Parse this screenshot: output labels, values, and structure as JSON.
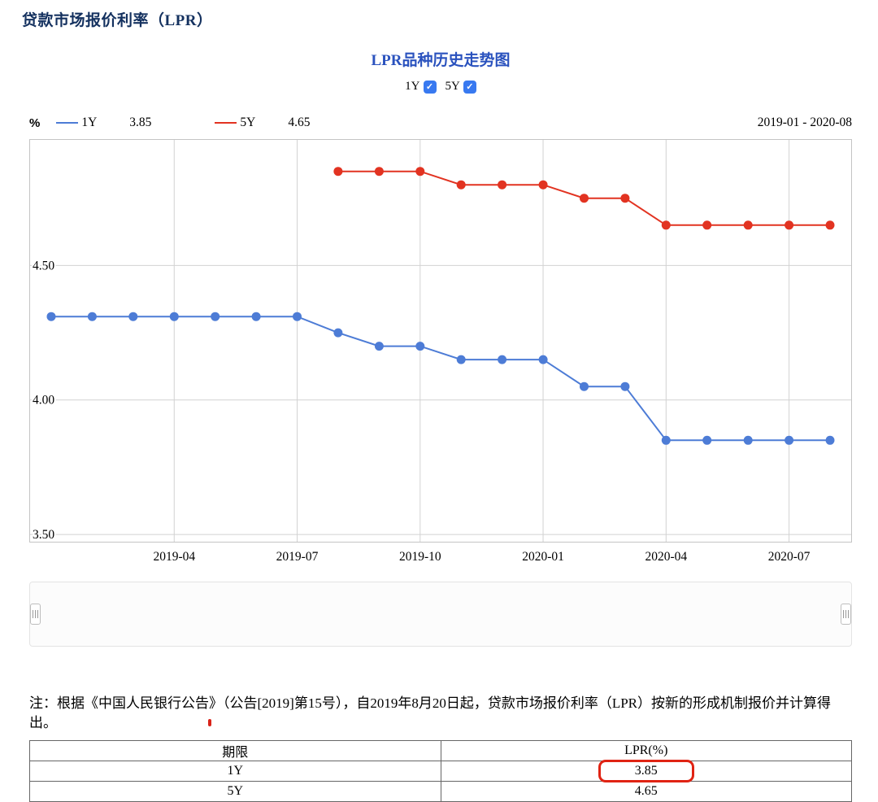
{
  "page": {
    "title": "贷款市场报价利率（LPR）"
  },
  "chart": {
    "title": "LPR品种历史走势图",
    "unit": "%",
    "date_range": "2019-01 - 2020-08",
    "toggles": [
      {
        "label": "1Y",
        "checked": true
      },
      {
        "label": "5Y",
        "checked": true
      }
    ],
    "legend": [
      {
        "label": "1Y",
        "value": "3.85",
        "color": "#4d7cd6"
      },
      {
        "label": "5Y",
        "value": "4.65",
        "color": "#e23321"
      }
    ]
  },
  "chart_data": {
    "type": "line",
    "title": "LPR品种历史走势图",
    "xlabel": "",
    "ylabel": "%",
    "x": [
      "2019-01",
      "2019-02",
      "2019-03",
      "2019-04",
      "2019-05",
      "2019-06",
      "2019-07",
      "2019-08",
      "2019-09",
      "2019-10",
      "2019-11",
      "2019-12",
      "2020-01",
      "2020-02",
      "2020-03",
      "2020-04",
      "2020-05",
      "2020-06",
      "2020-07",
      "2020-08"
    ],
    "series": [
      {
        "name": "1Y",
        "color": "#4d7cd6",
        "values": [
          4.31,
          4.31,
          4.31,
          4.31,
          4.31,
          4.31,
          4.31,
          4.25,
          4.2,
          4.2,
          4.15,
          4.15,
          4.15,
          4.05,
          4.05,
          3.85,
          3.85,
          3.85,
          3.85,
          3.85
        ]
      },
      {
        "name": "5Y",
        "color": "#e23321",
        "values": [
          null,
          null,
          null,
          null,
          null,
          null,
          null,
          4.85,
          4.85,
          4.85,
          4.8,
          4.8,
          4.8,
          4.75,
          4.75,
          4.65,
          4.65,
          4.65,
          4.65,
          4.65
        ]
      }
    ],
    "ylim": [
      3.47,
      4.97
    ],
    "yticks": [
      4.5,
      4.0,
      3.5
    ],
    "xticks": [
      "2019-04",
      "2019-07",
      "2019-10",
      "2020-01",
      "2020-04",
      "2020-07"
    ],
    "grid": true,
    "legend_position": "top-left",
    "date_range": "2019-01 - 2020-08"
  },
  "note": "注：根据《中国人民银行公告》（公告[2019]第15号），自2019年8月20日起，贷款市场报价利率（LPR）按新的形成机制报价并计算得出。",
  "table": {
    "headers": [
      "期限",
      "LPR(%)"
    ],
    "rows": [
      [
        "1Y",
        "3.85"
      ],
      [
        "5Y",
        "4.65"
      ]
    ],
    "highlight": {
      "row": 0,
      "col": 1
    }
  },
  "colors": {
    "page_title": "#14315f",
    "chart_title": "#2a52be",
    "series_1y": "#4d7cd6",
    "series_5y": "#e23321",
    "checkbox": "#3879f0",
    "grid": "#d2d2d2",
    "annotation": "#e02313"
  }
}
